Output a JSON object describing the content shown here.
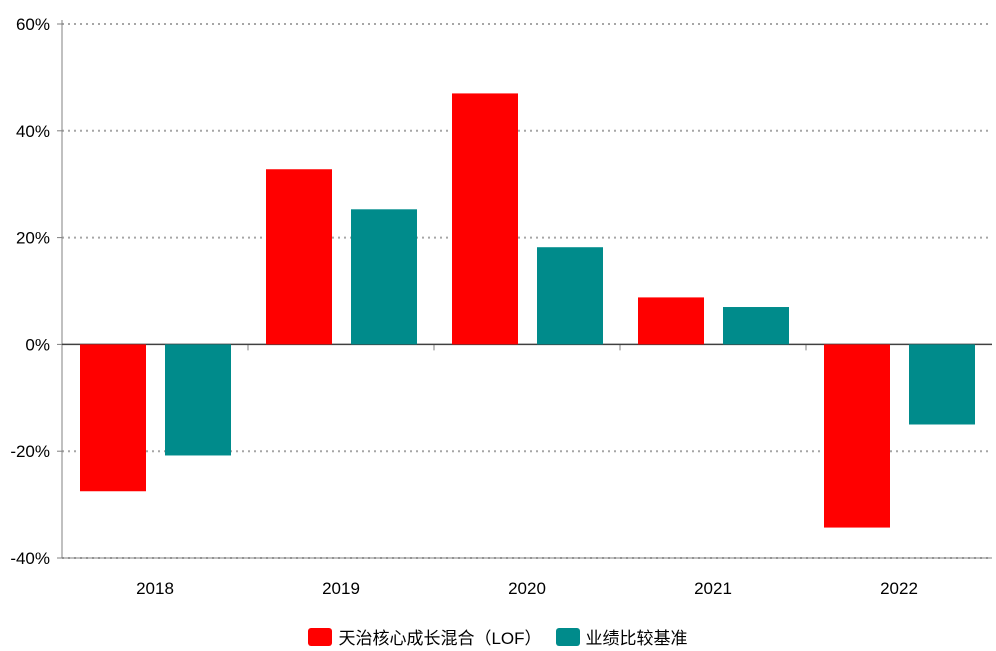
{
  "chart_data": {
    "type": "bar",
    "title": "",
    "xlabel": "",
    "ylabel": "",
    "categories": [
      "2018",
      "2019",
      "2020",
      "2021",
      "2022"
    ],
    "series": [
      {
        "name": "天治核心成长混合（LOF）",
        "color": "#ff0000",
        "values": [
          -27.5,
          32.8,
          47.0,
          8.8,
          -34.3
        ]
      },
      {
        "name": "业绩比较基准",
        "color": "#008b8b",
        "values": [
          -20.8,
          25.3,
          18.2,
          7.0,
          -15.0
        ]
      }
    ],
    "ylim": [
      -40,
      60
    ],
    "yticks": [
      60,
      40,
      20,
      0,
      -20,
      -40
    ],
    "ytick_labels": [
      "60%",
      "40%",
      "20%",
      "0%",
      "-20%",
      "-40%"
    ],
    "grid": true,
    "legend_position": "bottom-center"
  }
}
